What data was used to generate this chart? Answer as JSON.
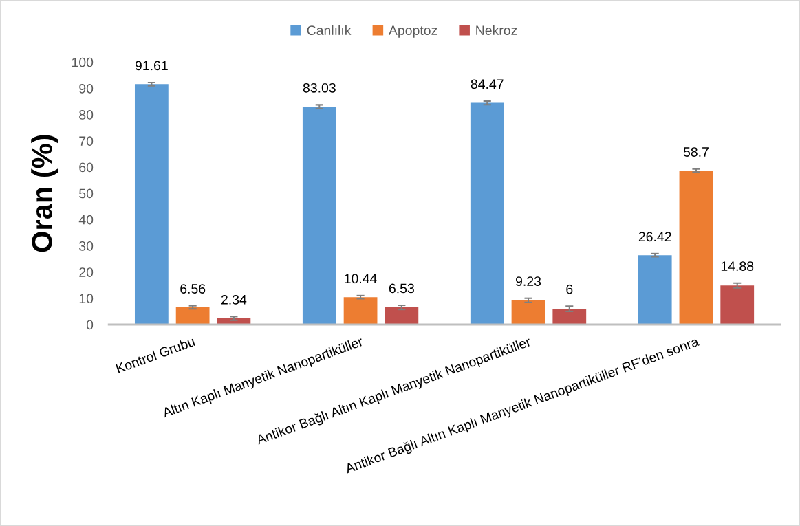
{
  "chart_data": {
    "type": "bar",
    "ylabel": "Oran (%)",
    "categories": [
      "Kontrol Grubu",
      "Altın Kaplı Manyetik Nanopartiküller",
      "Antikor Bağlı Altın Kaplı Manyetik Nanopartiküller",
      "Antikor Bağlı Altın Kaplı Manyetik Nanopartiküller RF’den sonra"
    ],
    "series": [
      {
        "name": "Canlılık",
        "color": "#5b9bd5",
        "values": [
          91.61,
          83.03,
          84.47,
          26.42
        ],
        "errors": [
          0.6,
          0.7,
          0.7,
          0.6
        ]
      },
      {
        "name": "Apoptoz",
        "color": "#ed7d31",
        "values": [
          6.56,
          10.44,
          9.23,
          58.7
        ],
        "errors": [
          0.6,
          0.6,
          0.8,
          0.6
        ]
      },
      {
        "name": "Nekroz",
        "color": "#c0504d",
        "values": [
          2.34,
          6.53,
          6,
          14.88
        ],
        "errors": [
          0.7,
          0.8,
          1,
          0.9
        ]
      }
    ],
    "ylim": [
      0,
      100
    ],
    "yticks": [
      0,
      10,
      20,
      30,
      40,
      50,
      60,
      70,
      80,
      90,
      100
    ],
    "data_labels": true,
    "legend": "top"
  }
}
